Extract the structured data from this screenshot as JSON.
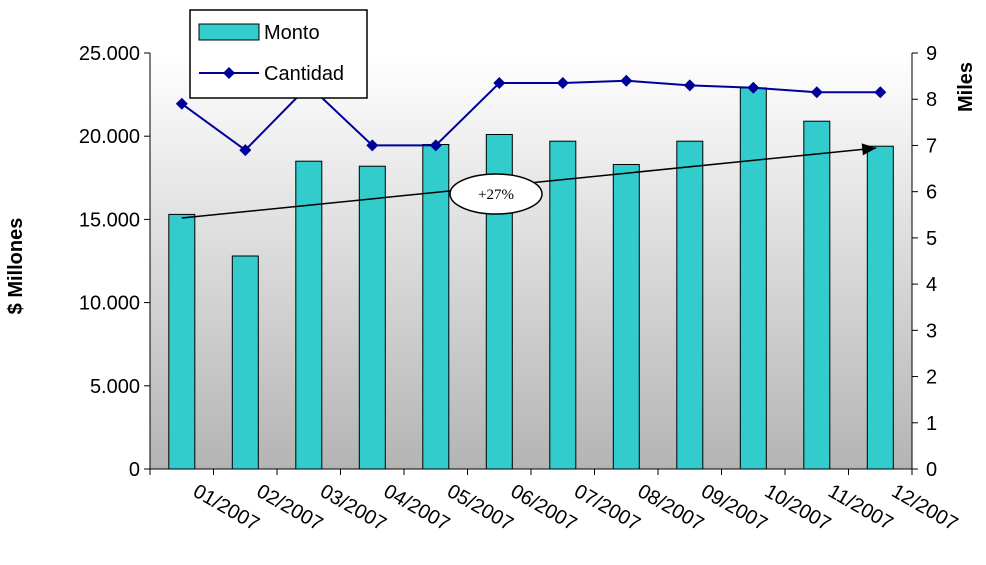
{
  "chart_data": {
    "type": "bar",
    "categories": [
      "01/2007",
      "02/2007",
      "03/2007",
      "04/2007",
      "05/2007",
      "06/2007",
      "07/2007",
      "08/2007",
      "09/2007",
      "10/2007",
      "11/2007",
      "12/2007"
    ],
    "series": [
      {
        "name": "Monto",
        "type": "bar",
        "axis": "left",
        "color": "#33CCCC",
        "values": [
          15300,
          12800,
          18500,
          18200,
          19500,
          20100,
          19700,
          18300,
          19700,
          22900,
          20900,
          19400
        ]
      },
      {
        "name": "Cantidad",
        "type": "line",
        "axis": "right",
        "color": "#000099",
        "marker": "diamond",
        "values": [
          7.9,
          6.9,
          8.3,
          7.0,
          7.0,
          8.35,
          8.35,
          8.4,
          8.3,
          8.25,
          8.15,
          8.15
        ]
      }
    ],
    "ylabel": "$ Millones",
    "y2label": "Miles",
    "ylim": [
      0,
      25000
    ],
    "y2lim": [
      0,
      9
    ],
    "yticks": [
      "0",
      "5.000",
      "10.000",
      "15.000",
      "20.000",
      "25.000"
    ],
    "y2ticks": [
      "0",
      "1",
      "2",
      "3",
      "4",
      "5",
      "6",
      "7",
      "8",
      "9"
    ],
    "legend_position": "top-left",
    "annotation": {
      "text": "+27%",
      "from_category": "01/2007",
      "to_category": "12/2007"
    },
    "plot_background": "gradient-white-to-gray"
  }
}
